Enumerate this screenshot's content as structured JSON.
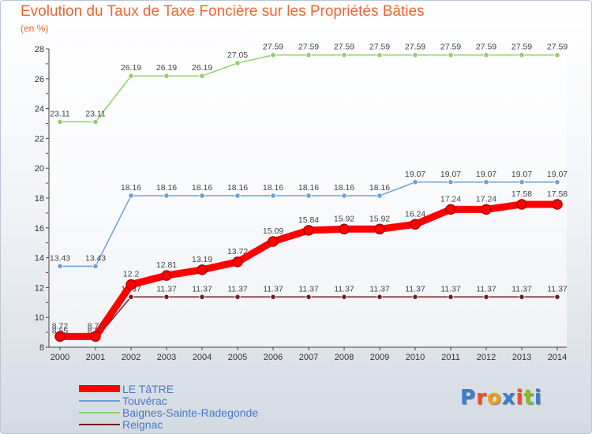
{
  "title": "Evolution du Taux de Taxe Foncière sur les Propriétés Bâties",
  "subtitle": "(en %)",
  "logo": {
    "text": "Proxiti",
    "colors": [
      "#3a7fd0",
      "#e8522e",
      "#f2a010",
      "#3a7fd0",
      "#e8522e",
      "#8bbd2a",
      "#3a7fd0"
    ]
  },
  "chart_data": {
    "type": "line",
    "x": [
      "2000",
      "2001",
      "2002",
      "2003",
      "2004",
      "2005",
      "2006",
      "2007",
      "2008",
      "2009",
      "2010",
      "2011",
      "2012",
      "2013",
      "2014"
    ],
    "ylim": [
      8,
      28
    ],
    "yticks": [
      "8",
      "10",
      "12",
      "14",
      "16",
      "18",
      "20",
      "22",
      "24",
      "26",
      "28"
    ],
    "grid": false,
    "legend_position": "bottom-left",
    "series": [
      {
        "name": "Reignac",
        "color": "#6b1f1f",
        "values": [
          8.55,
          8.55,
          11.37,
          11.37,
          11.37,
          11.37,
          11.37,
          11.37,
          11.37,
          11.37,
          11.37,
          11.37,
          11.37,
          11.37,
          11.37
        ],
        "labels": [
          "8.55",
          "8.55",
          "11.37",
          "11.37",
          "11.37",
          "11.37",
          "11.37",
          "11.37",
          "11.37",
          "11.37",
          "11.37",
          "11.37",
          "11.37",
          "11.37",
          "11.37"
        ]
      },
      {
        "name": "Baignes-Sainte-Radegonde",
        "color": "#8fd16a",
        "values": [
          23.11,
          23.11,
          26.19,
          26.19,
          26.19,
          27.05,
          27.59,
          27.59,
          27.59,
          27.59,
          27.59,
          27.59,
          27.59,
          27.59,
          27.59
        ],
        "labels": [
          "23.11",
          "23.11",
          "26.19",
          "26.19",
          "26.19",
          "27.05",
          "27.59",
          "27.59",
          "27.59",
          "27.59",
          "27.59",
          "27.59",
          "27.59",
          "27.59",
          "27.59"
        ]
      },
      {
        "name": "Touvérac",
        "color": "#6ea0d6",
        "values": [
          13.43,
          13.43,
          18.16,
          18.16,
          18.16,
          18.16,
          18.16,
          18.16,
          18.16,
          18.16,
          19.07,
          19.07,
          19.07,
          19.07,
          19.07
        ],
        "labels": [
          "13.43",
          "13.43",
          "18.16",
          "18.16",
          "18.16",
          "18.16",
          "18.16",
          "18.16",
          "18.16",
          "18.16",
          "19.07",
          "19.07",
          "19.07",
          "19.07",
          "19.07"
        ]
      },
      {
        "name": "LE TâTRE",
        "color": "#ff0000",
        "values": [
          8.72,
          8.72,
          12.2,
          12.81,
          13.19,
          13.72,
          15.09,
          15.84,
          15.92,
          15.92,
          16.24,
          17.24,
          17.24,
          17.58,
          17.58
        ],
        "labels": [
          "8.72",
          "8.72",
          "12.2",
          "12.81",
          "13.19",
          "13.72",
          "15.09",
          "15.84",
          "15.92",
          "15.92",
          "16.24",
          "17.24",
          "17.24",
          "17.58",
          "17.58"
        ]
      }
    ],
    "legend": [
      {
        "name": "LE TâTRE",
        "color": "#ff0000"
      },
      {
        "name": "Touvérac",
        "color": "#6ea0d6"
      },
      {
        "name": "Baignes-Sainte-Radegonde",
        "color": "#8fd16a"
      },
      {
        "name": "Reignac",
        "color": "#6b1f1f"
      }
    ]
  }
}
